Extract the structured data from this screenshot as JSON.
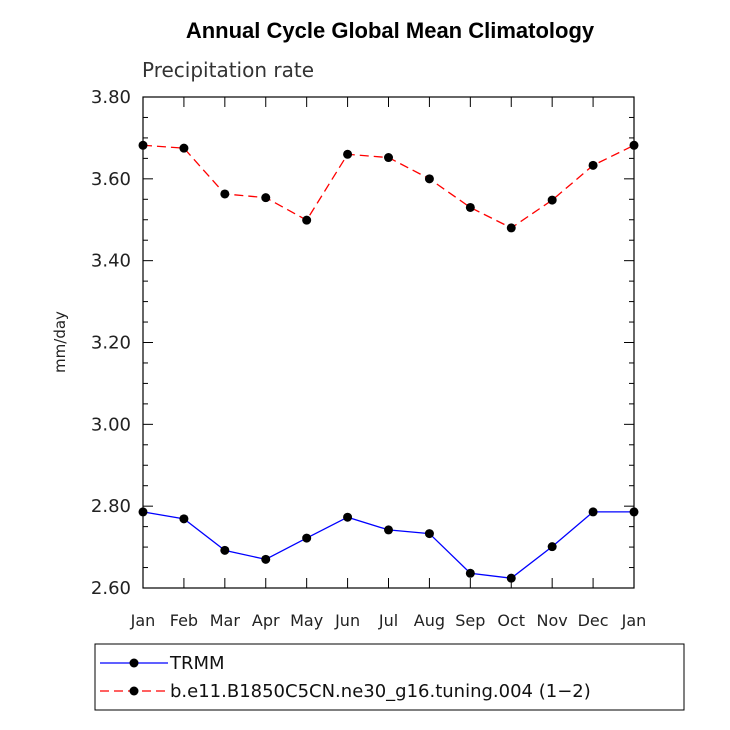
{
  "chart_data": {
    "type": "line",
    "title": "Annual Cycle Global Mean Climatology",
    "subtitle": "Precipitation rate",
    "xlabel": "",
    "ylabel": "mm/day",
    "categories": [
      "Jan",
      "Feb",
      "Mar",
      "Apr",
      "May",
      "Jun",
      "Jul",
      "Aug",
      "Sep",
      "Oct",
      "Nov",
      "Dec",
      "Jan"
    ],
    "ylim": [
      2.6,
      3.8
    ],
    "yticks": [
      "2.60",
      "2.80",
      "3.00",
      "3.20",
      "3.40",
      "3.60",
      "3.80"
    ],
    "grid": false,
    "legend_position": "bottom",
    "series": [
      {
        "name": "TRMM",
        "color": "#0000ff",
        "dash": "solid",
        "marker": "filled-circle",
        "values": [
          2.786,
          2.769,
          2.692,
          2.67,
          2.722,
          2.773,
          2.742,
          2.733,
          2.636,
          2.624,
          2.701,
          2.786,
          2.786
        ]
      },
      {
        "name": "b.e11.B1850C5CN.ne30_g16.tuning.004 (1−2)",
        "color": "#ff0000",
        "dash": "dashed",
        "marker": "filled-circle",
        "values": [
          3.682,
          3.675,
          3.563,
          3.554,
          3.499,
          3.66,
          3.652,
          3.6,
          3.53,
          3.48,
          3.548,
          3.633,
          3.682
        ]
      }
    ]
  }
}
